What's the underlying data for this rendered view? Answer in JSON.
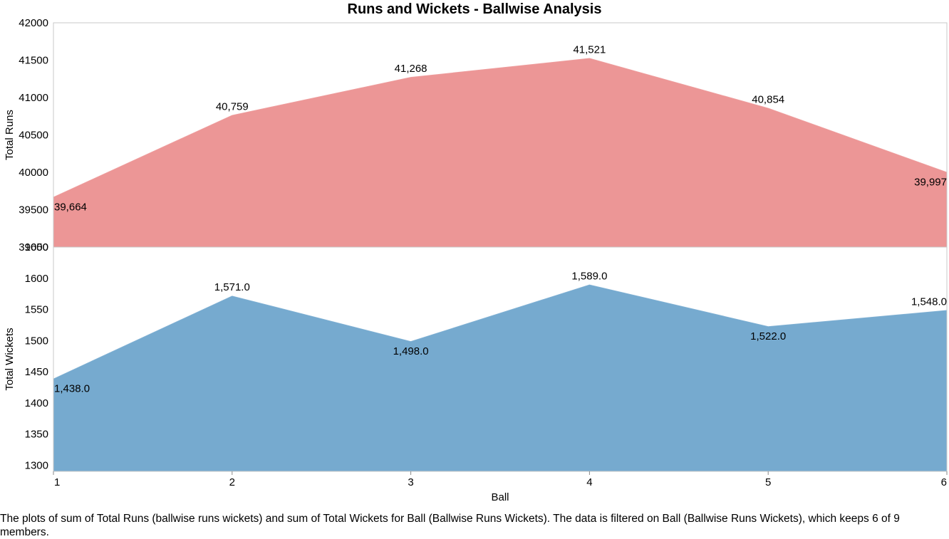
{
  "chart_data": {
    "type": "area",
    "title": "Runs and Wickets - Ballwise Analysis",
    "xlabel": "Ball",
    "x": [
      1,
      2,
      3,
      4,
      5,
      6
    ],
    "series": [
      {
        "name": "Total Runs",
        "ylabel": "Total Runs",
        "values": [
          39664,
          40759,
          41268,
          41521,
          40854,
          39997
        ],
        "labels": [
          "39,664",
          "40,759",
          "41,268",
          "41,521",
          "40,854",
          "39,997"
        ],
        "ylim": [
          39000,
          42000
        ],
        "yticks": [
          39000,
          39500,
          40000,
          40500,
          41000,
          41500,
          42000
        ],
        "color": "#ec9696"
      },
      {
        "name": "Total Wickets",
        "ylabel": "Total Wickets",
        "values": [
          1438,
          1571,
          1498,
          1589,
          1522,
          1548
        ],
        "labels": [
          "1,438.0",
          "1,571.0",
          "1,498.0",
          "1,589.0",
          "1,522.0",
          "1,548.0"
        ],
        "ylim": [
          1290,
          1650
        ],
        "yticks": [
          1300,
          1350,
          1400,
          1450,
          1500,
          1550,
          1600,
          1650
        ],
        "color": "#76aacf"
      }
    ],
    "grid": false,
    "legend": "none"
  },
  "caption": "The plots of sum of Total Runs (ballwise runs wickets) and sum of Total Wickets for Ball (Ballwise Runs Wickets). The data is filtered on Ball (Ballwise Runs Wickets), which keeps 6 of 9 members."
}
